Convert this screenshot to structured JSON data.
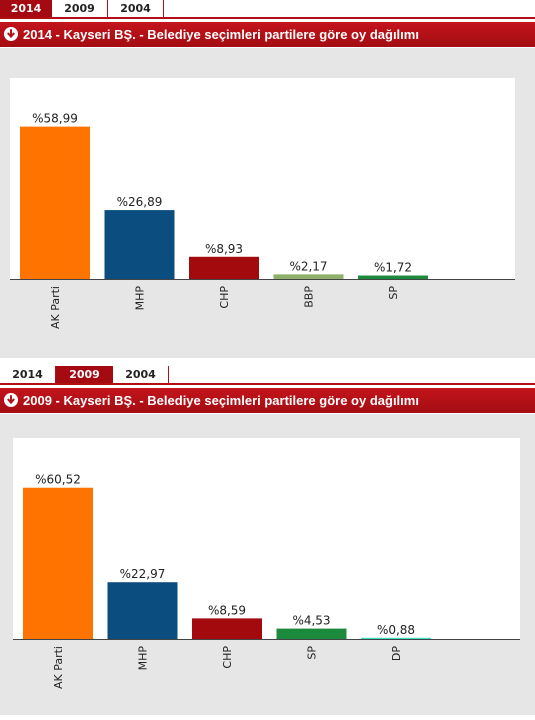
{
  "panels": [
    {
      "tabs": [
        {
          "label": "2014",
          "active": true
        },
        {
          "label": "2009",
          "active": false
        },
        {
          "label": "2004",
          "active": false
        }
      ],
      "title": "2014 - Kayseri BŞ. - Belediye seçimleri partilere göre oy dağılımı",
      "chart_data": {
        "type": "bar",
        "title": "2014 - Kayseri BŞ. - Belediye seçimleri partilere göre oy dağılımı",
        "categories": [
          "AK Parti",
          "MHP",
          "CHP",
          "BBP",
          "SP"
        ],
        "values": [
          58.99,
          26.89,
          8.93,
          2.17,
          1.72
        ],
        "data_labels": [
          "%58,99",
          "%26,89",
          "%8,93",
          "%2,17",
          "%1,72"
        ],
        "colors": [
          "#ff7300",
          "#0c4d7f",
          "#a30a0e",
          "#8fb06a",
          "#1c8a3c"
        ],
        "ylim": [
          0,
          60
        ],
        "grid": false,
        "legend": "none"
      }
    },
    {
      "tabs": [
        {
          "label": "2014",
          "active": false
        },
        {
          "label": "2009",
          "active": true
        },
        {
          "label": "2004",
          "active": false
        }
      ],
      "title": "2009 - Kayseri BŞ. - Belediye seçimleri partilere göre oy dağılımı",
      "chart_data": {
        "type": "bar",
        "title": "2009 - Kayseri BŞ. - Belediye seçimleri partilere göre oy dağılımı",
        "categories": [
          "AK Parti",
          "MHP",
          "CHP",
          "SP",
          "DP"
        ],
        "values": [
          60.52,
          22.97,
          8.59,
          4.53,
          0.88
        ],
        "data_labels": [
          "%60,52",
          "%22,97",
          "%8,59",
          "%4,53",
          "%0,88"
        ],
        "colors": [
          "#ff7300",
          "#0c4d7f",
          "#a30a0e",
          "#1c8a3c",
          "#3ee0c8"
        ],
        "ylim": [
          0,
          62
        ],
        "grid": false,
        "legend": "none"
      }
    }
  ]
}
